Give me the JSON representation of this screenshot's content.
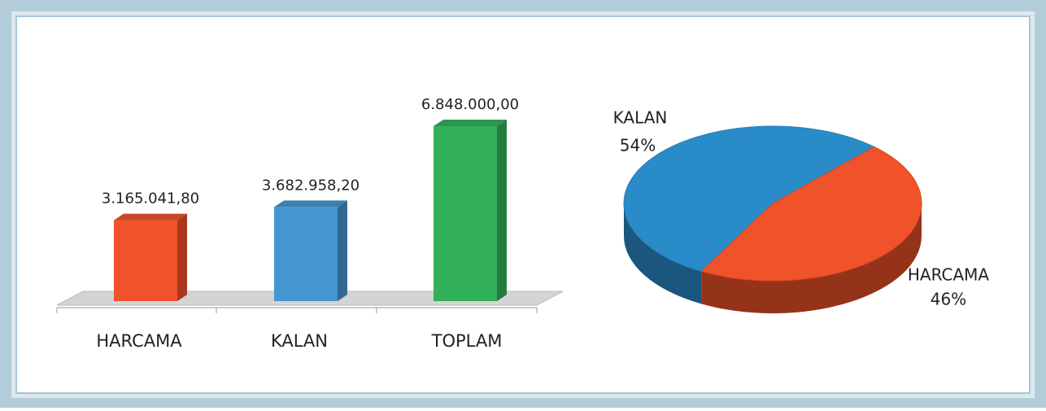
{
  "chart_data": [
    {
      "type": "bar",
      "categories": [
        "HARCAMA",
        "KALAN",
        "TOPLAM"
      ],
      "values": [
        3165041.8,
        3682958.2,
        6848000
      ],
      "value_labels": [
        "3.165.041,80",
        "3.682.958,20",
        "6.848.000,00"
      ],
      "colors": [
        "#f0522a",
        "#4596d0",
        "#33b05a"
      ]
    },
    {
      "type": "pie",
      "categories": [
        "KALAN",
        "HARCAMA"
      ],
      "values": [
        54,
        46
      ],
      "value_labels": [
        "54%",
        "46%"
      ],
      "colors": [
        "#2a8bc9",
        "#f0522a"
      ]
    }
  ]
}
